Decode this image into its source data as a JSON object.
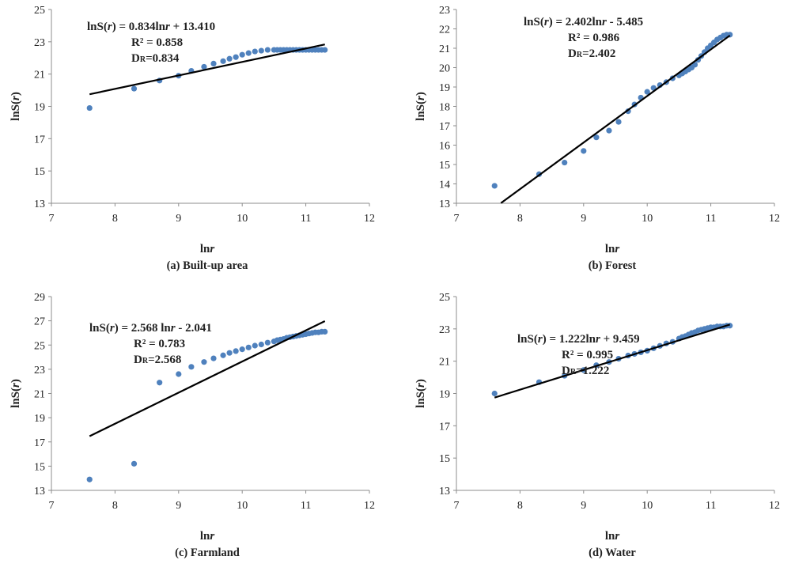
{
  "chart_data": [
    {
      "type": "scatter",
      "caption": "(a)  Built-up area",
      "xlabel_main": "ln",
      "xlabel_var": "r",
      "ylabel": "lnS(r)",
      "xlim": [
        7,
        12
      ],
      "ylim": [
        13,
        25
      ],
      "xticks": [
        "7",
        "8",
        "9",
        "10",
        "11",
        "12"
      ],
      "yticks": [
        "13",
        "15",
        "17",
        "19",
        "21",
        "23",
        "25"
      ],
      "equation": {
        "line1": {
          "pre": "lnS(",
          "var": "r",
          "mid": ") = 0.834ln",
          "var2": "r",
          "post": " + 13.410"
        },
        "r2": "R² = 0.858",
        "d_main": "D",
        "d_sub": "R",
        "d_val": "=0.834"
      },
      "fit": {
        "slope": 0.834,
        "intercept": 13.41,
        "x_range": [
          7.6,
          11.3
        ]
      },
      "points": {
        "x": [
          7.6,
          8.3,
          8.7,
          9.0,
          9.2,
          9.4,
          9.55,
          9.7,
          9.8,
          9.9,
          10.0,
          10.1,
          10.2,
          10.3,
          10.4,
          10.5,
          10.55,
          10.6,
          10.65,
          10.7,
          10.75,
          10.8,
          10.85,
          10.9,
          10.95,
          11.0,
          11.05,
          11.1,
          11.15,
          11.2,
          11.25,
          11.3
        ],
        "y": [
          18.9,
          20.1,
          20.6,
          20.9,
          21.2,
          21.45,
          21.65,
          21.8,
          21.95,
          22.05,
          22.2,
          22.3,
          22.4,
          22.45,
          22.5,
          22.5,
          22.5,
          22.5,
          22.5,
          22.5,
          22.5,
          22.5,
          22.5,
          22.5,
          22.5,
          22.5,
          22.5,
          22.5,
          22.5,
          22.5,
          22.5,
          22.5
        ]
      }
    },
    {
      "type": "scatter",
      "caption": "(b) Forest",
      "xlabel_main": "ln",
      "xlabel_var": "r",
      "ylabel": "lnS(r)",
      "xlim": [
        7,
        12
      ],
      "ylim": [
        13,
        23
      ],
      "xticks": [
        "7",
        "8",
        "9",
        "10",
        "11",
        "12"
      ],
      "yticks": [
        "13",
        "14",
        "15",
        "16",
        "17",
        "18",
        "19",
        "20",
        "21",
        "22",
        "23"
      ],
      "equation": {
        "line1": {
          "pre": "lnS(",
          "var": "r",
          "mid": ") = 2.402ln",
          "var2": "r",
          "post": " - 5.485"
        },
        "r2": "R² = 0.986",
        "d_main": "D",
        "d_sub": "R",
        "d_val": "=2.402"
      },
      "fit": {
        "slope": 2.402,
        "intercept": -5.485,
        "x_range": [
          7.7,
          11.3
        ]
      },
      "points": {
        "x": [
          7.6,
          8.3,
          8.7,
          9.0,
          9.2,
          9.4,
          9.55,
          9.7,
          9.8,
          9.9,
          10.0,
          10.1,
          10.2,
          10.3,
          10.4,
          10.5,
          10.55,
          10.6,
          10.65,
          10.7,
          10.75,
          10.8,
          10.85,
          10.9,
          10.95,
          11.0,
          11.05,
          11.1,
          11.15,
          11.2,
          11.25,
          11.3
        ],
        "y": [
          13.9,
          14.5,
          15.1,
          15.7,
          16.4,
          16.75,
          17.2,
          17.75,
          18.1,
          18.45,
          18.75,
          18.95,
          19.1,
          19.25,
          19.45,
          19.6,
          19.7,
          19.8,
          19.9,
          20.0,
          20.15,
          20.4,
          20.6,
          20.8,
          21.0,
          21.15,
          21.3,
          21.45,
          21.55,
          21.65,
          21.7,
          21.7
        ]
      }
    },
    {
      "type": "scatter",
      "caption": "(c) Farmland",
      "xlabel_main": "ln",
      "xlabel_var": "r",
      "ylabel": "lnS(r)",
      "xlim": [
        7,
        12
      ],
      "ylim": [
        13,
        29
      ],
      "xticks": [
        "7",
        "8",
        "9",
        "10",
        "11",
        "12"
      ],
      "yticks": [
        "13",
        "15",
        "17",
        "19",
        "21",
        "23",
        "25",
        "27",
        "29"
      ],
      "equation": {
        "line1": {
          "pre": "lnS(",
          "var": "r",
          "mid": ") = 2.568 ln",
          "var2": "r",
          "post": " - 2.041"
        },
        "r2": "R² = 0.783",
        "d_main": "D",
        "d_sub": "R",
        "d_val": "=2.568"
      },
      "fit": {
        "slope": 2.568,
        "intercept": -2.041,
        "x_range": [
          7.6,
          11.3
        ]
      },
      "points": {
        "x": [
          7.6,
          8.3,
          8.7,
          9.0,
          9.2,
          9.4,
          9.55,
          9.7,
          9.8,
          9.9,
          10.0,
          10.1,
          10.2,
          10.3,
          10.4,
          10.5,
          10.55,
          10.6,
          10.65,
          10.7,
          10.75,
          10.8,
          10.85,
          10.9,
          10.95,
          11.0,
          11.05,
          11.1,
          11.15,
          11.2,
          11.25,
          11.3
        ],
        "y": [
          13.9,
          15.2,
          21.9,
          22.6,
          23.2,
          23.6,
          23.9,
          24.15,
          24.35,
          24.5,
          24.65,
          24.8,
          24.95,
          25.05,
          25.2,
          25.3,
          25.4,
          25.45,
          25.5,
          25.6,
          25.65,
          25.7,
          25.75,
          25.8,
          25.85,
          25.9,
          25.95,
          26.0,
          26.05,
          26.05,
          26.1,
          26.1
        ]
      }
    },
    {
      "type": "scatter",
      "caption": "(d) Water",
      "xlabel_main": "ln",
      "xlabel_var": "r",
      "ylabel": "lnS(r)",
      "xlim": [
        7,
        12
      ],
      "ylim": [
        13,
        25
      ],
      "xticks": [
        "7",
        "8",
        "9",
        "10",
        "11",
        "12"
      ],
      "yticks": [
        "13",
        "15",
        "17",
        "19",
        "21",
        "23",
        "25"
      ],
      "equation": {
        "line1": {
          "pre": "lnS(",
          "var": "r",
          "mid": ") = 1.222ln",
          "var2": "r",
          "post": " + 9.459"
        },
        "r2": "R² = 0.995",
        "d_main": "D",
        "d_sub": "R",
        "d_val": "=1.222"
      },
      "fit": {
        "slope": 1.222,
        "intercept": 9.459,
        "x_range": [
          7.6,
          11.3
        ]
      },
      "points": {
        "x": [
          7.6,
          8.3,
          8.7,
          9.0,
          9.2,
          9.4,
          9.55,
          9.7,
          9.8,
          9.9,
          10.0,
          10.1,
          10.2,
          10.3,
          10.4,
          10.5,
          10.55,
          10.6,
          10.65,
          10.7,
          10.75,
          10.8,
          10.85,
          10.9,
          10.95,
          11.0,
          11.05,
          11.1,
          11.15,
          11.2,
          11.25,
          11.3
        ],
        "y": [
          19.0,
          19.7,
          20.1,
          20.45,
          20.75,
          20.95,
          21.15,
          21.35,
          21.45,
          21.55,
          21.65,
          21.8,
          21.95,
          22.1,
          22.2,
          22.4,
          22.5,
          22.55,
          22.65,
          22.75,
          22.8,
          22.9,
          22.95,
          23.0,
          23.05,
          23.1,
          23.1,
          23.15,
          23.15,
          23.15,
          23.2,
          23.2
        ]
      }
    }
  ],
  "colors": {
    "point": "#4f81bd",
    "fit_line": "#000000",
    "axis": "#8c8c8c",
    "text": "#222222"
  }
}
